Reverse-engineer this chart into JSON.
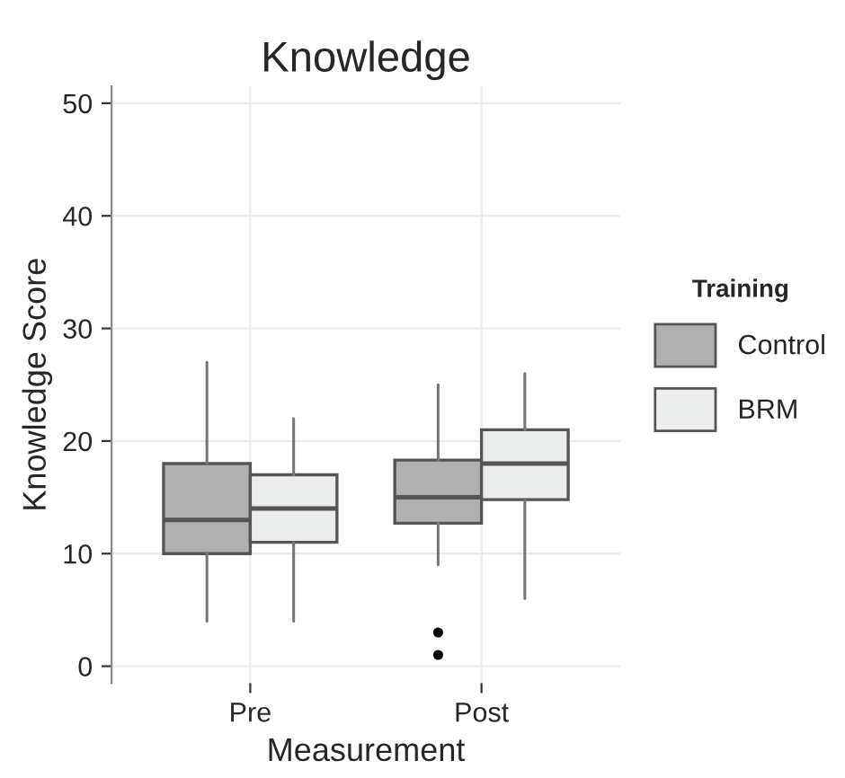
{
  "chart_data": {
    "type": "box",
    "title": "Knowledge",
    "xlabel": "Measurement",
    "ylabel": "Knowledge Score",
    "legend_title": "Training",
    "categories": [
      "Pre",
      "Post"
    ],
    "series": [
      {
        "name": "Control",
        "color": "#b0b0b0",
        "boxes": [
          {
            "low": 4,
            "q1": 10,
            "median": 13,
            "q3": 18,
            "high": 27
          },
          {
            "low": 9,
            "q1": 12.7,
            "median": 15,
            "q3": 18.3,
            "high": 25,
            "outliers": [
              3,
              1
            ]
          }
        ]
      },
      {
        "name": "BRM",
        "color": "#ebedec",
        "boxes": [
          {
            "low": 4,
            "q1": 11,
            "median": 14,
            "q3": 17,
            "high": 22
          },
          {
            "low": 6,
            "q1": 14.8,
            "median": 18,
            "q3": 21,
            "high": 26
          }
        ]
      }
    ],
    "ylim": [
      -1.5,
      51.5
    ],
    "yticks": [
      0,
      10,
      20,
      30,
      40,
      50
    ],
    "grid": true,
    "legend": "right"
  }
}
